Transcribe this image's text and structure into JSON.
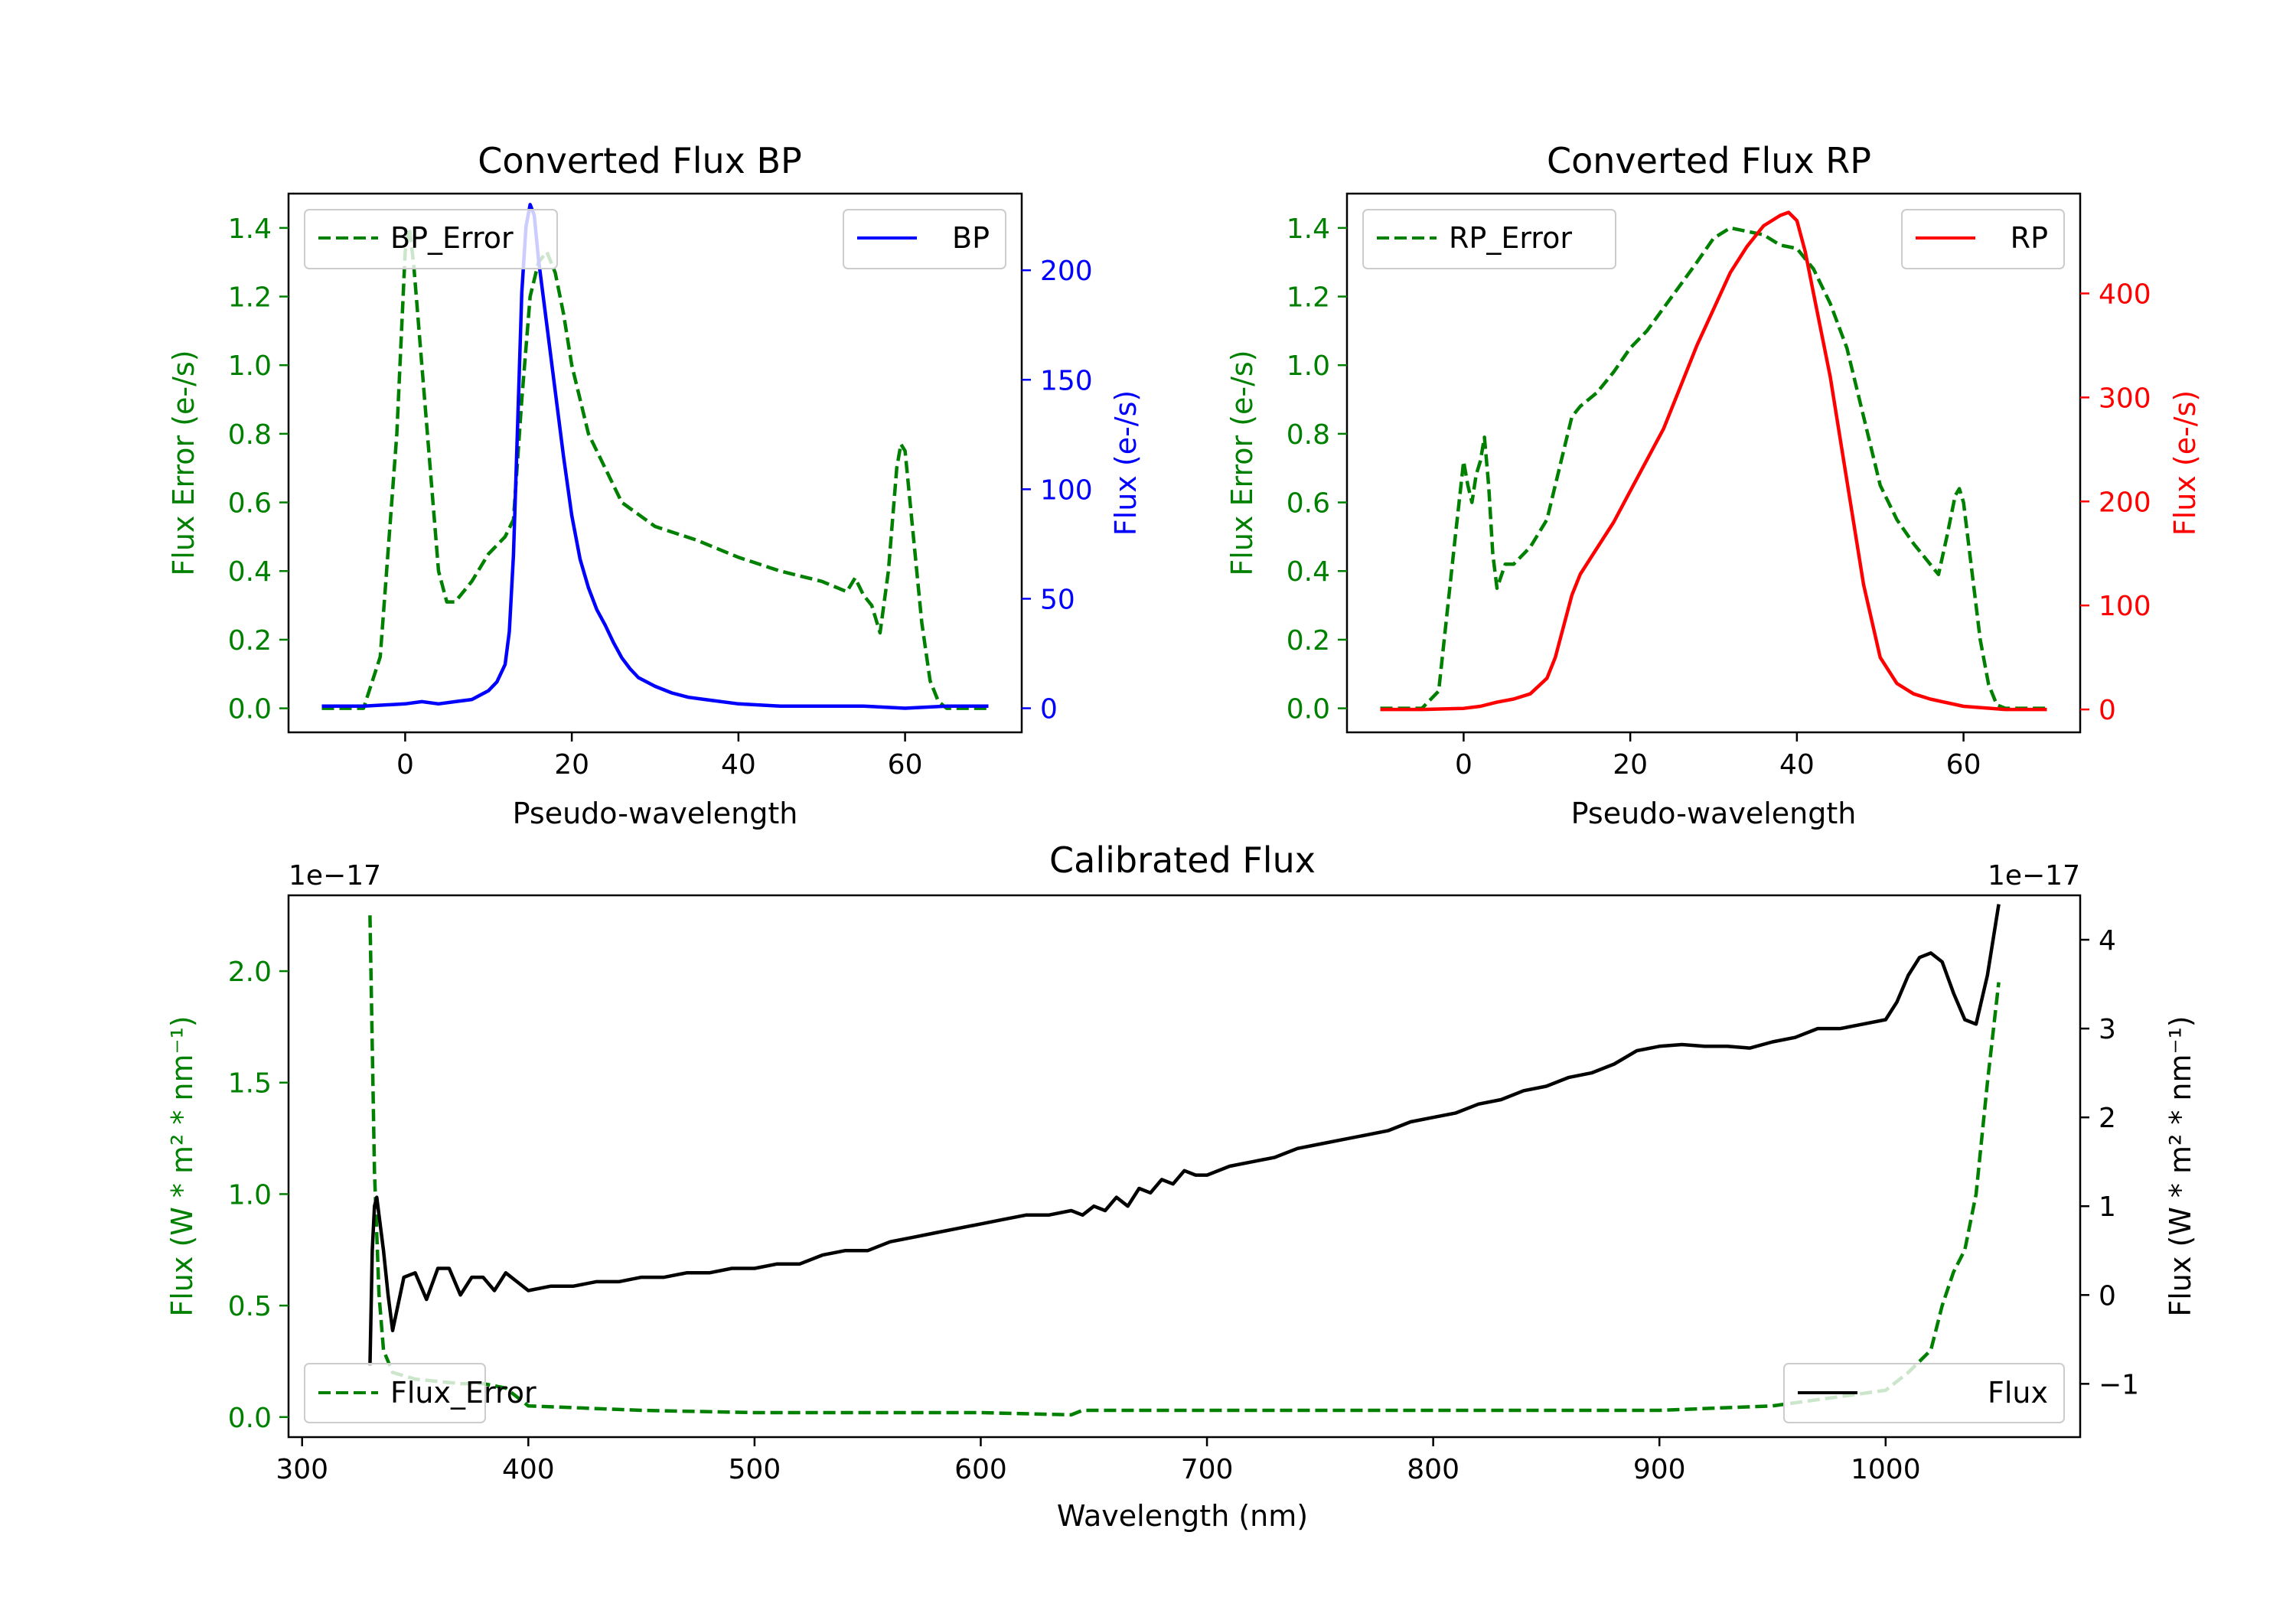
{
  "chart_data": [
    {
      "type": "line",
      "title": "Converted Flux BP",
      "xlabel": "Pseudo-wavelength",
      "ylabel_left": "Flux Error (e-/s)",
      "ylabel_right": "Flux (e-/s)",
      "xlim": [
        -14,
        74
      ],
      "ylim_left": [
        -0.07,
        1.5
      ],
      "ylim_right": [
        -11.0,
        235.0
      ],
      "xticks": [
        "0",
        "20",
        "40",
        "60"
      ],
      "yticks_left": [
        "0.0",
        "0.2",
        "0.4",
        "0.6",
        "0.8",
        "1.0",
        "1.2",
        "1.4"
      ],
      "yticks_right": [
        "0",
        "50",
        "100",
        "150",
        "200"
      ],
      "legend_left": "top-left",
      "legend_right": "top-right",
      "series": [
        {
          "name": "BP_Error",
          "axis": "left",
          "color": "#008000",
          "style": "dashed",
          "x": [
            -10,
            -5,
            -3,
            -1,
            0,
            0.5,
            1,
            2,
            3,
            4,
            5,
            6,
            8,
            10,
            12,
            13,
            14,
            15,
            16,
            17,
            18,
            19,
            20,
            22,
            24,
            26,
            30,
            35,
            40,
            45,
            50,
            53,
            54,
            55,
            56,
            57,
            58,
            59,
            59.5,
            60,
            61,
            62,
            63,
            64,
            65,
            70
          ],
          "values": [
            0.0,
            0.0,
            0.15,
            0.8,
            1.33,
            1.4,
            1.3,
            1.0,
            0.7,
            0.4,
            0.31,
            0.31,
            0.37,
            0.45,
            0.5,
            0.55,
            0.9,
            1.2,
            1.3,
            1.33,
            1.27,
            1.15,
            1.0,
            0.8,
            0.7,
            0.6,
            0.53,
            0.49,
            0.44,
            0.4,
            0.37,
            0.34,
            0.38,
            0.33,
            0.3,
            0.22,
            0.4,
            0.7,
            0.77,
            0.75,
            0.5,
            0.25,
            0.08,
            0.02,
            0.0,
            0.0
          ]
        },
        {
          "name": "BP",
          "axis": "right",
          "color": "#0000ff",
          "style": "solid",
          "x": [
            -10,
            -5,
            0,
            2,
            4,
            6,
            8,
            10,
            11,
            12,
            12.5,
            13,
            13.5,
            14,
            14.5,
            15,
            15.5,
            16,
            17,
            18,
            19,
            20,
            21,
            22,
            23,
            24,
            25,
            26,
            27,
            28,
            30,
            32,
            34,
            36,
            40,
            45,
            50,
            55,
            60,
            65,
            70
          ],
          "values": [
            1,
            1,
            2,
            3,
            2,
            3,
            4,
            8,
            12,
            20,
            35,
            70,
            130,
            190,
            220,
            230,
            225,
            205,
            175,
            145,
            115,
            88,
            68,
            55,
            45,
            38,
            30,
            23,
            18,
            14,
            10,
            7,
            5,
            4,
            2,
            1,
            1,
            1,
            0,
            1,
            1
          ]
        }
      ]
    },
    {
      "type": "line",
      "title": "Converted Flux RP",
      "xlabel": "Pseudo-wavelength",
      "ylabel_left": "Flux Error (e-/s)",
      "ylabel_right": "Flux (e-/s)",
      "xlim": [
        -14,
        74
      ],
      "ylim_left": [
        -0.07,
        1.5
      ],
      "ylim_right": [
        -22,
        496
      ],
      "xticks": [
        "0",
        "20",
        "40",
        "60"
      ],
      "yticks_left": [
        "0.0",
        "0.2",
        "0.4",
        "0.6",
        "0.8",
        "1.0",
        "1.2",
        "1.4"
      ],
      "yticks_right": [
        "0",
        "100",
        "200",
        "300",
        "400"
      ],
      "legend_left": "top-left",
      "legend_right": "top-right",
      "series": [
        {
          "name": "RP_Error",
          "axis": "left",
          "color": "#008000",
          "style": "dashed",
          "x": [
            -10,
            -5,
            -3,
            -1,
            0,
            0.5,
            1,
            1.5,
            2,
            2.5,
            3,
            3.5,
            4,
            5,
            6,
            8,
            10,
            12,
            13,
            14,
            16,
            18,
            20,
            22,
            25,
            28,
            30,
            32,
            34,
            36,
            38,
            40,
            42,
            44,
            46,
            48,
            50,
            52,
            54,
            55,
            56,
            57,
            58,
            59,
            59.5,
            60,
            61,
            62,
            63,
            64,
            65,
            70
          ],
          "values": [
            0.0,
            0.0,
            0.05,
            0.5,
            0.72,
            0.65,
            0.6,
            0.68,
            0.72,
            0.79,
            0.65,
            0.45,
            0.35,
            0.42,
            0.42,
            0.47,
            0.55,
            0.75,
            0.85,
            0.88,
            0.92,
            0.98,
            1.05,
            1.1,
            1.2,
            1.3,
            1.37,
            1.4,
            1.39,
            1.38,
            1.35,
            1.34,
            1.28,
            1.18,
            1.05,
            0.85,
            0.65,
            0.55,
            0.48,
            0.45,
            0.42,
            0.39,
            0.5,
            0.62,
            0.64,
            0.6,
            0.4,
            0.2,
            0.07,
            0.01,
            0.0,
            0.0
          ]
        },
        {
          "name": "RP",
          "axis": "right",
          "color": "#ff0000",
          "style": "solid",
          "x": [
            -10,
            -5,
            0,
            2,
            4,
            6,
            8,
            10,
            11,
            12,
            13,
            14,
            16,
            18,
            20,
            22,
            24,
            26,
            28,
            30,
            32,
            34,
            36,
            38,
            39,
            40,
            41,
            42,
            44,
            46,
            48,
            50,
            52,
            54,
            56,
            60,
            65,
            70
          ],
          "values": [
            0,
            0,
            1,
            3,
            7,
            10,
            15,
            30,
            50,
            80,
            110,
            130,
            155,
            180,
            210,
            240,
            270,
            310,
            350,
            385,
            420,
            445,
            465,
            475,
            478,
            470,
            440,
            400,
            320,
            220,
            120,
            50,
            25,
            15,
            10,
            3,
            0,
            0
          ]
        }
      ]
    },
    {
      "type": "line",
      "title": "Calibrated Flux",
      "xlabel": "Wavelength (nm)",
      "ylabel_left": "Flux (W * m² * nm⁻¹)",
      "ylabel_right": "Flux (W * m² * nm⁻¹)",
      "offset_left": "1e−17",
      "offset_right": "1e−17",
      "xlim": [
        294,
        1086
      ],
      "ylim_left": [
        -0.09,
        2.34
      ],
      "ylim_right": [
        -1.6,
        4.5
      ],
      "xticks": [
        "300",
        "400",
        "500",
        "600",
        "700",
        "800",
        "900",
        "1000"
      ],
      "yticks_left": [
        "0.0",
        "0.5",
        "1.0",
        "1.5",
        "2.0"
      ],
      "yticks_right": [
        "−1",
        "0",
        "1",
        "2",
        "3",
        "4"
      ],
      "legend_left": "bottom-left",
      "legend_right": "bottom-right",
      "series": [
        {
          "name": "Flux_Error",
          "axis": "left",
          "color": "#008000",
          "style": "dashed",
          "x": [
            330,
            332,
            334,
            336,
            340,
            350,
            360,
            370,
            380,
            390,
            400,
            450,
            500,
            550,
            600,
            640,
            645,
            700,
            800,
            900,
            950,
            1000,
            1010,
            1020,
            1025,
            1030,
            1035,
            1040,
            1045,
            1050
          ],
          "values": [
            2.25,
            1.1,
            0.55,
            0.3,
            0.2,
            0.17,
            0.16,
            0.15,
            0.15,
            0.13,
            0.05,
            0.03,
            0.02,
            0.02,
            0.02,
            0.01,
            0.03,
            0.03,
            0.03,
            0.03,
            0.05,
            0.12,
            0.2,
            0.3,
            0.5,
            0.65,
            0.75,
            1.0,
            1.5,
            1.95
          ]
        },
        {
          "name": "Flux",
          "axis": "right",
          "color": "#000000",
          "style": "solid",
          "x": [
            330,
            331,
            332,
            333,
            334,
            336,
            338,
            340,
            345,
            350,
            355,
            360,
            365,
            370,
            375,
            380,
            385,
            390,
            395,
            400,
            410,
            420,
            430,
            440,
            450,
            460,
            470,
            480,
            490,
            500,
            510,
            520,
            530,
            540,
            550,
            560,
            570,
            580,
            590,
            600,
            610,
            620,
            630,
            640,
            645,
            650,
            655,
            660,
            665,
            670,
            675,
            680,
            685,
            690,
            695,
            700,
            710,
            720,
            730,
            740,
            750,
            760,
            770,
            780,
            790,
            800,
            810,
            820,
            830,
            840,
            850,
            860,
            870,
            880,
            890,
            900,
            910,
            920,
            930,
            940,
            950,
            960,
            970,
            980,
            990,
            1000,
            1005,
            1010,
            1015,
            1020,
            1025,
            1030,
            1035,
            1040,
            1045,
            1050
          ],
          "values": [
            -0.8,
            0.5,
            1.0,
            1.1,
            0.9,
            0.5,
            0.0,
            -0.4,
            0.2,
            0.25,
            -0.05,
            0.3,
            0.3,
            0.0,
            0.2,
            0.2,
            0.05,
            0.25,
            0.15,
            0.05,
            0.1,
            0.1,
            0.15,
            0.15,
            0.2,
            0.2,
            0.25,
            0.25,
            0.3,
            0.3,
            0.35,
            0.35,
            0.45,
            0.5,
            0.5,
            0.6,
            0.65,
            0.7,
            0.75,
            0.8,
            0.85,
            0.9,
            0.9,
            0.95,
            0.9,
            1.0,
            0.95,
            1.1,
            1.0,
            1.2,
            1.15,
            1.3,
            1.25,
            1.4,
            1.35,
            1.35,
            1.45,
            1.5,
            1.55,
            1.65,
            1.7,
            1.75,
            1.8,
            1.85,
            1.95,
            2.0,
            2.05,
            2.15,
            2.2,
            2.3,
            2.35,
            2.45,
            2.5,
            2.6,
            2.75,
            2.8,
            2.82,
            2.8,
            2.8,
            2.78,
            2.85,
            2.9,
            3.0,
            3.0,
            3.05,
            3.1,
            3.3,
            3.6,
            3.8,
            3.85,
            3.75,
            3.4,
            3.1,
            3.05,
            3.6,
            4.4
          ]
        }
      ]
    }
  ]
}
